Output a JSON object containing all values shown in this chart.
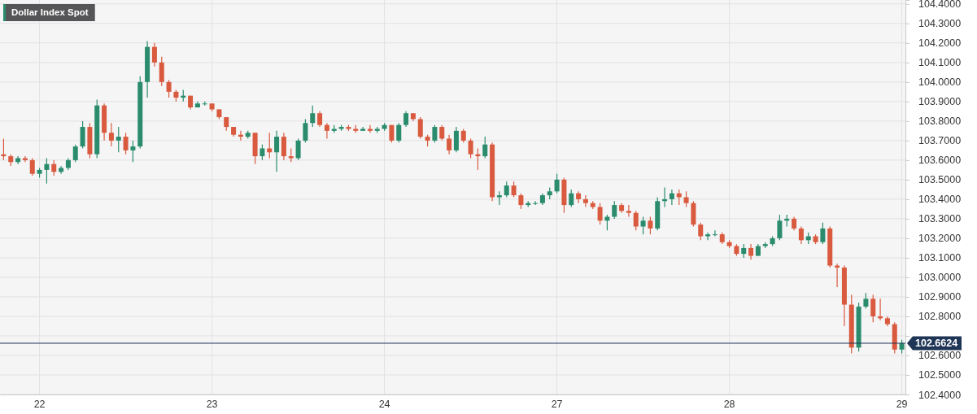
{
  "chart_data": {
    "type": "candlestick",
    "title": "Dollar Index Spot",
    "categories": [
      null,
      null,
      null,
      null,
      null,
      "22",
      null,
      null,
      null,
      null,
      null,
      null,
      null,
      null,
      null,
      null,
      null,
      null,
      null,
      null,
      null,
      null,
      null,
      null,
      null,
      null,
      null,
      null,
      null,
      "23",
      null,
      null,
      null,
      null,
      null,
      null,
      null,
      null,
      null,
      null,
      null,
      null,
      null,
      null,
      null,
      null,
      null,
      null,
      null,
      null,
      null,
      null,
      null,
      "24",
      null,
      null,
      null,
      null,
      null,
      null,
      null,
      null,
      null,
      null,
      null,
      null,
      null,
      null,
      null,
      null,
      null,
      null,
      null,
      null,
      null,
      null,
      null,
      "27",
      null,
      null,
      null,
      null,
      null,
      null,
      null,
      null,
      null,
      null,
      null,
      null,
      null,
      null,
      null,
      null,
      null,
      null,
      null,
      null,
      null,
      null,
      null,
      "28",
      null,
      null,
      null,
      null,
      null,
      null,
      null,
      null,
      null,
      null,
      null,
      null,
      null,
      null,
      null,
      null,
      null,
      null,
      null,
      null,
      null,
      null,
      null,
      "29"
    ],
    "ohlc": [
      [
        103.63,
        103.71,
        103.6,
        103.62
      ],
      [
        103.62,
        103.63,
        103.57,
        103.59
      ],
      [
        103.59,
        103.62,
        103.58,
        103.61
      ],
      [
        103.61,
        103.62,
        103.59,
        103.6
      ],
      [
        103.6,
        103.61,
        103.52,
        103.53
      ],
      [
        103.53,
        103.56,
        103.51,
        103.55
      ],
      [
        103.55,
        103.61,
        103.48,
        103.58
      ],
      [
        103.58,
        103.6,
        103.52,
        103.54
      ],
      [
        103.54,
        103.57,
        103.53,
        103.56
      ],
      [
        103.56,
        103.61,
        103.55,
        103.6
      ],
      [
        103.6,
        103.68,
        103.59,
        103.67
      ],
      [
        103.67,
        103.8,
        103.66,
        103.77
      ],
      [
        103.77,
        103.79,
        103.61,
        103.63
      ],
      [
        103.63,
        103.91,
        103.61,
        103.88
      ],
      [
        103.88,
        103.89,
        103.7,
        103.74
      ],
      [
        103.74,
        103.79,
        103.67,
        103.7
      ],
      [
        103.7,
        103.77,
        103.64,
        103.72
      ],
      [
        103.72,
        103.74,
        103.63,
        103.65
      ],
      [
        103.65,
        103.7,
        103.59,
        103.67
      ],
      [
        103.67,
        104.03,
        103.66,
        104.0
      ],
      [
        104.0,
        104.21,
        103.92,
        104.18
      ],
      [
        104.18,
        104.2,
        104.08,
        104.1
      ],
      [
        104.1,
        104.13,
        103.98,
        104.0
      ],
      [
        104.0,
        104.01,
        103.92,
        103.95
      ],
      [
        103.95,
        103.96,
        103.9,
        103.92
      ],
      [
        103.92,
        103.96,
        103.9,
        103.93
      ],
      [
        103.93,
        103.93,
        103.86,
        103.87
      ],
      [
        103.87,
        103.9,
        103.87,
        103.89
      ],
      [
        103.89,
        103.9,
        103.88,
        103.89
      ],
      [
        103.89,
        103.89,
        103.85,
        103.86
      ],
      [
        103.86,
        103.86,
        103.81,
        103.82
      ],
      [
        103.82,
        103.82,
        103.75,
        103.77
      ],
      [
        103.77,
        103.77,
        103.72,
        103.73
      ],
      [
        103.73,
        103.75,
        103.7,
        103.72
      ],
      [
        103.72,
        103.75,
        103.71,
        103.74
      ],
      [
        103.74,
        103.74,
        103.58,
        103.62
      ],
      [
        103.62,
        103.68,
        103.6,
        103.66
      ],
      [
        103.66,
        103.74,
        103.61,
        103.64
      ],
      [
        103.64,
        103.75,
        103.54,
        103.72
      ],
      [
        103.72,
        103.74,
        103.6,
        103.62
      ],
      [
        103.62,
        103.66,
        103.59,
        103.61
      ],
      [
        103.61,
        103.71,
        103.6,
        103.7
      ],
      [
        103.7,
        103.81,
        103.69,
        103.79
      ],
      [
        103.79,
        103.88,
        103.77,
        103.84
      ],
      [
        103.84,
        103.85,
        103.77,
        103.78
      ],
      [
        103.78,
        103.79,
        103.71,
        103.75
      ],
      [
        103.75,
        103.78,
        103.74,
        103.76
      ],
      [
        103.76,
        103.78,
        103.75,
        103.77
      ],
      [
        103.77,
        103.78,
        103.75,
        103.76
      ],
      [
        103.76,
        103.78,
        103.74,
        103.75
      ],
      [
        103.75,
        103.77,
        103.75,
        103.76
      ],
      [
        103.76,
        103.78,
        103.74,
        103.75
      ],
      [
        103.75,
        103.77,
        103.74,
        103.76
      ],
      [
        103.76,
        103.79,
        103.75,
        103.78
      ],
      [
        103.78,
        103.78,
        103.69,
        103.7
      ],
      [
        103.7,
        103.79,
        103.69,
        103.78
      ],
      [
        103.78,
        103.85,
        103.77,
        103.84
      ],
      [
        103.84,
        103.84,
        103.8,
        103.81
      ],
      [
        103.81,
        103.82,
        103.71,
        103.72
      ],
      [
        103.72,
        103.73,
        103.67,
        103.7
      ],
      [
        103.7,
        103.78,
        103.69,
        103.77
      ],
      [
        103.77,
        103.78,
        103.7,
        103.71
      ],
      [
        103.71,
        103.73,
        103.63,
        103.65
      ],
      [
        103.65,
        103.77,
        103.64,
        103.75
      ],
      [
        103.75,
        103.76,
        103.69,
        103.7
      ],
      [
        103.7,
        103.71,
        103.61,
        103.63
      ],
      [
        103.63,
        103.66,
        103.55,
        103.62
      ],
      [
        103.62,
        103.72,
        103.61,
        103.68
      ],
      [
        103.68,
        103.69,
        103.39,
        103.41
      ],
      [
        103.41,
        103.44,
        103.37,
        103.42
      ],
      [
        103.42,
        103.49,
        103.41,
        103.47
      ],
      [
        103.47,
        103.49,
        103.41,
        103.42
      ],
      [
        103.42,
        103.43,
        103.35,
        103.37
      ],
      [
        103.37,
        103.39,
        103.36,
        103.38
      ],
      [
        103.38,
        103.39,
        103.37,
        103.38
      ],
      [
        103.38,
        103.43,
        103.37,
        103.42
      ],
      [
        103.42,
        103.46,
        103.4,
        103.44
      ],
      [
        103.44,
        103.53,
        103.43,
        103.5
      ],
      [
        103.5,
        103.51,
        103.33,
        103.37
      ],
      [
        103.37,
        103.45,
        103.36,
        103.43
      ],
      [
        103.43,
        103.44,
        103.38,
        103.4
      ],
      [
        103.4,
        103.42,
        103.36,
        103.38
      ],
      [
        103.38,
        103.39,
        103.35,
        103.36
      ],
      [
        103.36,
        103.38,
        103.27,
        103.29
      ],
      [
        103.29,
        103.32,
        103.24,
        103.31
      ],
      [
        103.31,
        103.39,
        103.3,
        103.37
      ],
      [
        103.37,
        103.38,
        103.33,
        103.34
      ],
      [
        103.34,
        103.37,
        103.31,
        103.33
      ],
      [
        103.33,
        103.34,
        103.24,
        103.26
      ],
      [
        103.26,
        103.31,
        103.22,
        103.29
      ],
      [
        103.29,
        103.31,
        103.22,
        103.25
      ],
      [
        103.25,
        103.41,
        103.24,
        103.39
      ],
      [
        103.39,
        103.46,
        103.36,
        103.4
      ],
      [
        103.4,
        103.45,
        103.37,
        103.43
      ],
      [
        103.43,
        103.45,
        103.37,
        103.41
      ],
      [
        103.41,
        103.44,
        103.36,
        103.38
      ],
      [
        103.38,
        103.39,
        103.26,
        103.27
      ],
      [
        103.27,
        103.28,
        103.19,
        103.21
      ],
      [
        103.21,
        103.23,
        103.19,
        103.22
      ],
      [
        103.22,
        103.24,
        103.21,
        103.22
      ],
      [
        103.22,
        103.23,
        103.17,
        103.18
      ],
      [
        103.18,
        103.19,
        103.15,
        103.16
      ],
      [
        103.16,
        103.17,
        103.11,
        103.12
      ],
      [
        103.12,
        103.17,
        103.1,
        103.15
      ],
      [
        103.15,
        103.17,
        103.09,
        103.11
      ],
      [
        103.11,
        103.17,
        103.11,
        103.16
      ],
      [
        103.16,
        103.18,
        103.15,
        103.17
      ],
      [
        103.17,
        103.21,
        103.16,
        103.2
      ],
      [
        103.2,
        103.32,
        103.19,
        103.29
      ],
      [
        103.29,
        103.32,
        103.26,
        103.3
      ],
      [
        103.3,
        103.31,
        103.24,
        103.25
      ],
      [
        103.25,
        103.26,
        103.17,
        103.19
      ],
      [
        103.19,
        103.23,
        103.17,
        103.21
      ],
      [
        103.21,
        103.22,
        103.17,
        103.18
      ],
      [
        103.18,
        103.28,
        103.17,
        103.25
      ],
      [
        103.25,
        103.26,
        103.05,
        103.06
      ],
      [
        103.06,
        103.07,
        102.95,
        103.05
      ],
      [
        103.05,
        103.06,
        102.75,
        102.86
      ],
      [
        102.86,
        102.91,
        102.61,
        102.64
      ],
      [
        102.64,
        102.87,
        102.62,
        102.85
      ],
      [
        102.85,
        102.92,
        102.84,
        102.89
      ],
      [
        102.89,
        102.91,
        102.77,
        102.8
      ],
      [
        102.8,
        102.89,
        102.78,
        102.79
      ],
      [
        102.79,
        102.8,
        102.75,
        102.76
      ],
      [
        102.76,
        102.77,
        102.61,
        102.63
      ],
      [
        102.63,
        102.68,
        102.61,
        102.6624
      ]
    ],
    "colors": [
      "#d95a3f",
      "#d95a3f",
      "#2a8c6c",
      "#d95a3f",
      "#d95a3f",
      "#2a8c6c",
      "#2a8c6c",
      "#d95a3f",
      "#2a8c6c",
      "#2a8c6c",
      "#2a8c6c",
      "#2a8c6c",
      "#d95a3f",
      "#2a8c6c",
      "#d95a3f",
      "#d95a3f",
      "#2a8c6c",
      "#d95a3f",
      "#2a8c6c",
      "#2a8c6c",
      "#2a8c6c",
      "#d95a3f",
      "#d95a3f",
      "#d95a3f",
      "#d95a3f",
      "#2a8c6c",
      "#d95a3f",
      "#2a8c6c",
      "#2a8c6c",
      "#d95a3f",
      "#d95a3f",
      "#d95a3f",
      "#d95a3f",
      "#d95a3f",
      "#2a8c6c",
      "#d95a3f",
      "#2a8c6c",
      "#d95a3f",
      "#2a8c6c",
      "#d95a3f",
      "#d95a3f",
      "#2a8c6c",
      "#2a8c6c",
      "#2a8c6c",
      "#d95a3f",
      "#d95a3f",
      "#2a8c6c",
      "#2a8c6c",
      "#d95a3f",
      "#d95a3f",
      "#2a8c6c",
      "#d95a3f",
      "#2a8c6c",
      "#2a8c6c",
      "#d95a3f",
      "#2a8c6c",
      "#2a8c6c",
      "#d95a3f",
      "#d95a3f",
      "#d95a3f",
      "#2a8c6c",
      "#d95a3f",
      "#d95a3f",
      "#2a8c6c",
      "#d95a3f",
      "#d95a3f",
      "#d95a3f",
      "#2a8c6c",
      "#d95a3f",
      "#2a8c6c",
      "#2a8c6c",
      "#d95a3f",
      "#d95a3f",
      "#2a8c6c",
      "#2a8c6c",
      "#2a8c6c",
      "#2a8c6c",
      "#2a8c6c",
      "#d95a3f",
      "#2a8c6c",
      "#d95a3f",
      "#d95a3f",
      "#d95a3f",
      "#d95a3f",
      "#2a8c6c",
      "#2a8c6c",
      "#d95a3f",
      "#d95a3f",
      "#d95a3f",
      "#2a8c6c",
      "#d95a3f",
      "#2a8c6c",
      "#2a8c6c",
      "#2a8c6c",
      "#d95a3f",
      "#d95a3f",
      "#d95a3f",
      "#d95a3f",
      "#2a8c6c",
      "#2a8c6c",
      "#d95a3f",
      "#d95a3f",
      "#d95a3f",
      "#2a8c6c",
      "#d95a3f",
      "#2a8c6c",
      "#2a8c6c",
      "#2a8c6c",
      "#2a8c6c",
      "#2a8c6c",
      "#d95a3f",
      "#d95a3f",
      "#2a8c6c",
      "#d95a3f",
      "#2a8c6c",
      "#d95a3f",
      "#d95a3f",
      "#d95a3f",
      "#d95a3f",
      "#2a8c6c",
      "#2a8c6c",
      "#d95a3f",
      "#d95a3f",
      "#d95a3f",
      "#d95a3f",
      "#2a8c6c"
    ],
    "ylim": [
      102.4,
      104.42
    ],
    "yticks": [
      {
        "value": 102.4,
        "label": "102.4000"
      },
      {
        "value": 102.5,
        "label": "102.5000"
      },
      {
        "value": 102.6,
        "label": "102.6000"
      },
      {
        "value": 102.7,
        "label": null
      },
      {
        "value": 102.8,
        "label": "102.8000"
      },
      {
        "value": 102.9,
        "label": "102.9000"
      },
      {
        "value": 103.0,
        "label": "103.0000"
      },
      {
        "value": 103.1,
        "label": "103.1000"
      },
      {
        "value": 103.2,
        "label": "103.2000"
      },
      {
        "value": 103.3,
        "label": "103.3000"
      },
      {
        "value": 103.4,
        "label": "103.4000"
      },
      {
        "value": 103.5,
        "label": "103.5000"
      },
      {
        "value": 103.6,
        "label": "103.6000"
      },
      {
        "value": 103.7,
        "label": "103.7000"
      },
      {
        "value": 103.8,
        "label": "103.8000"
      },
      {
        "value": 103.9,
        "label": "103.9000"
      },
      {
        "value": 104.0,
        "label": "104.0000"
      },
      {
        "value": 104.1,
        "label": "104.1000"
      },
      {
        "value": 104.2,
        "label": "104.2000"
      },
      {
        "value": 104.3,
        "label": "104.3000"
      },
      {
        "value": 104.4,
        "label": "104.4000"
      }
    ],
    "ref_lines": [
      {
        "axis": "y",
        "value": 102.6624,
        "label": "102.6624",
        "color": "#1f3556"
      }
    ],
    "grid": true
  }
}
